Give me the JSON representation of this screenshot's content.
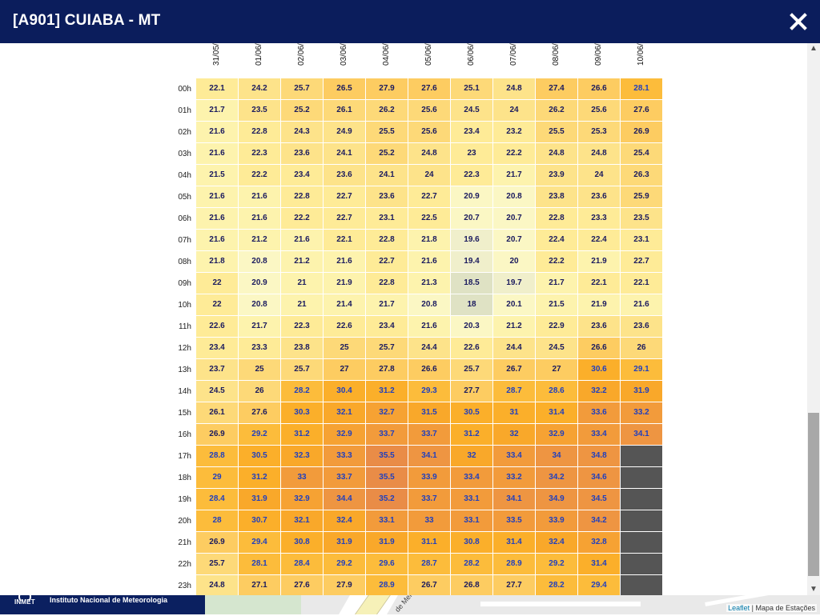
{
  "modal": {
    "title": "[A901] CUIABA - MT",
    "close_icon": "close-icon"
  },
  "dates": [
    "31/05/",
    "01/06/",
    "02/06/",
    "03/06/",
    "04/06/",
    "05/06/",
    "06/06/",
    "07/06/",
    "08/06/",
    "09/06/",
    "10/06/"
  ],
  "hours": [
    "00h",
    "01h",
    "02h",
    "03h",
    "04h",
    "05h",
    "06h",
    "07h",
    "08h",
    "09h",
    "10h",
    "11h",
    "12h",
    "13h",
    "14h",
    "15h",
    "16h",
    "17h",
    "18h",
    "19h",
    "20h",
    "21h",
    "22h",
    "23h"
  ],
  "values": [
    [
      "22.1",
      "24.2",
      "25.7",
      "26.5",
      "27.9",
      "27.6",
      "25.1",
      "24.8",
      "27.4",
      "26.6",
      "28.1"
    ],
    [
      "21.7",
      "23.5",
      "25.2",
      "26.1",
      "26.2",
      "25.6",
      "24.5",
      "24",
      "26.2",
      "25.6",
      "27.6"
    ],
    [
      "21.6",
      "22.8",
      "24.3",
      "24.9",
      "25.5",
      "25.6",
      "23.4",
      "23.2",
      "25.5",
      "25.3",
      "26.9"
    ],
    [
      "21.6",
      "22.3",
      "23.6",
      "24.1",
      "25.2",
      "24.8",
      "23",
      "22.2",
      "24.8",
      "24.8",
      "25.4"
    ],
    [
      "21.5",
      "22.2",
      "23.4",
      "23.6",
      "24.1",
      "24",
      "22.3",
      "21.7",
      "23.9",
      "24",
      "26.3"
    ],
    [
      "21.6",
      "21.6",
      "22.8",
      "22.7",
      "23.6",
      "22.7",
      "20.9",
      "20.8",
      "23.8",
      "23.6",
      "25.9"
    ],
    [
      "21.6",
      "21.6",
      "22.2",
      "22.7",
      "23.1",
      "22.5",
      "20.7",
      "20.7",
      "22.8",
      "23.3",
      "23.5"
    ],
    [
      "21.6",
      "21.2",
      "21.6",
      "22.1",
      "22.8",
      "21.8",
      "19.6",
      "20.7",
      "22.4",
      "22.4",
      "23.1"
    ],
    [
      "21.8",
      "20.8",
      "21.2",
      "21.6",
      "22.7",
      "21.6",
      "19.4",
      "20",
      "22.2",
      "21.9",
      "22.7"
    ],
    [
      "22",
      "20.9",
      "21",
      "21.9",
      "22.8",
      "21.3",
      "18.5",
      "19.7",
      "21.7",
      "22.1",
      "22.1"
    ],
    [
      "22",
      "20.8",
      "21",
      "21.4",
      "21.7",
      "20.8",
      "18",
      "20.1",
      "21.5",
      "21.9",
      "21.6"
    ],
    [
      "22.6",
      "21.7",
      "22.3",
      "22.6",
      "23.4",
      "21.6",
      "20.3",
      "21.2",
      "22.9",
      "23.6",
      "23.6"
    ],
    [
      "23.4",
      "23.3",
      "23.8",
      "25",
      "25.7",
      "24.4",
      "22.6",
      "24.4",
      "24.5",
      "26.6",
      "26"
    ],
    [
      "23.7",
      "25",
      "25.7",
      "27",
      "27.8",
      "26.6",
      "25.7",
      "26.7",
      "27",
      "30.6",
      "29.1"
    ],
    [
      "24.5",
      "26",
      "28.2",
      "30.4",
      "31.2",
      "29.3",
      "27.7",
      "28.7",
      "28.6",
      "32.2",
      "31.9"
    ],
    [
      "26.1",
      "27.6",
      "30.3",
      "32.1",
      "32.7",
      "31.5",
      "30.5",
      "31",
      "31.4",
      "33.6",
      "33.2"
    ],
    [
      "26.9",
      "29.2",
      "31.2",
      "32.9",
      "33.7",
      "33.7",
      "31.2",
      "32",
      "32.9",
      "33.4",
      "34.1"
    ],
    [
      "28.8",
      "30.5",
      "32.3",
      "33.3",
      "35.5",
      "34.1",
      "32",
      "33.4",
      "34",
      "34.8",
      ""
    ],
    [
      "29",
      "31.2",
      "33",
      "33.7",
      "35.5",
      "33.9",
      "33.4",
      "33.2",
      "34.2",
      "34.6",
      ""
    ],
    [
      "28.4",
      "31.9",
      "32.9",
      "34.4",
      "35.2",
      "33.7",
      "33.1",
      "34.1",
      "34.9",
      "34.5",
      ""
    ],
    [
      "28",
      "30.7",
      "32.1",
      "32.4",
      "33.1",
      "33",
      "33.1",
      "33.5",
      "33.9",
      "34.2",
      ""
    ],
    [
      "26.9",
      "29.4",
      "30.8",
      "31.9",
      "31.9",
      "31.1",
      "30.8",
      "31.4",
      "32.4",
      "32.8",
      ""
    ],
    [
      "25.7",
      "28.1",
      "28.4",
      "29.2",
      "29.6",
      "28.7",
      "28.2",
      "28.9",
      "29.2",
      "31.4",
      ""
    ],
    [
      "24.8",
      "27.1",
      "27.6",
      "27.9",
      "28.9",
      "26.7",
      "26.8",
      "27.7",
      "28.2",
      "29.4",
      ""
    ]
  ],
  "colors": {
    "header_bg": "#0b1d5c",
    "text_dark": "#1a1a5e",
    "text_blue": "#1f3fbf",
    "missing": "#555555"
  },
  "footer": {
    "logo_text": "INMET",
    "institute": "Instituto Nacional de Meteorologia",
    "attribution_leaflet": "Leaflet",
    "attribution_sep": " | ",
    "attribution_map": "Mapa de Estações"
  },
  "map_label": "de Mer"
}
